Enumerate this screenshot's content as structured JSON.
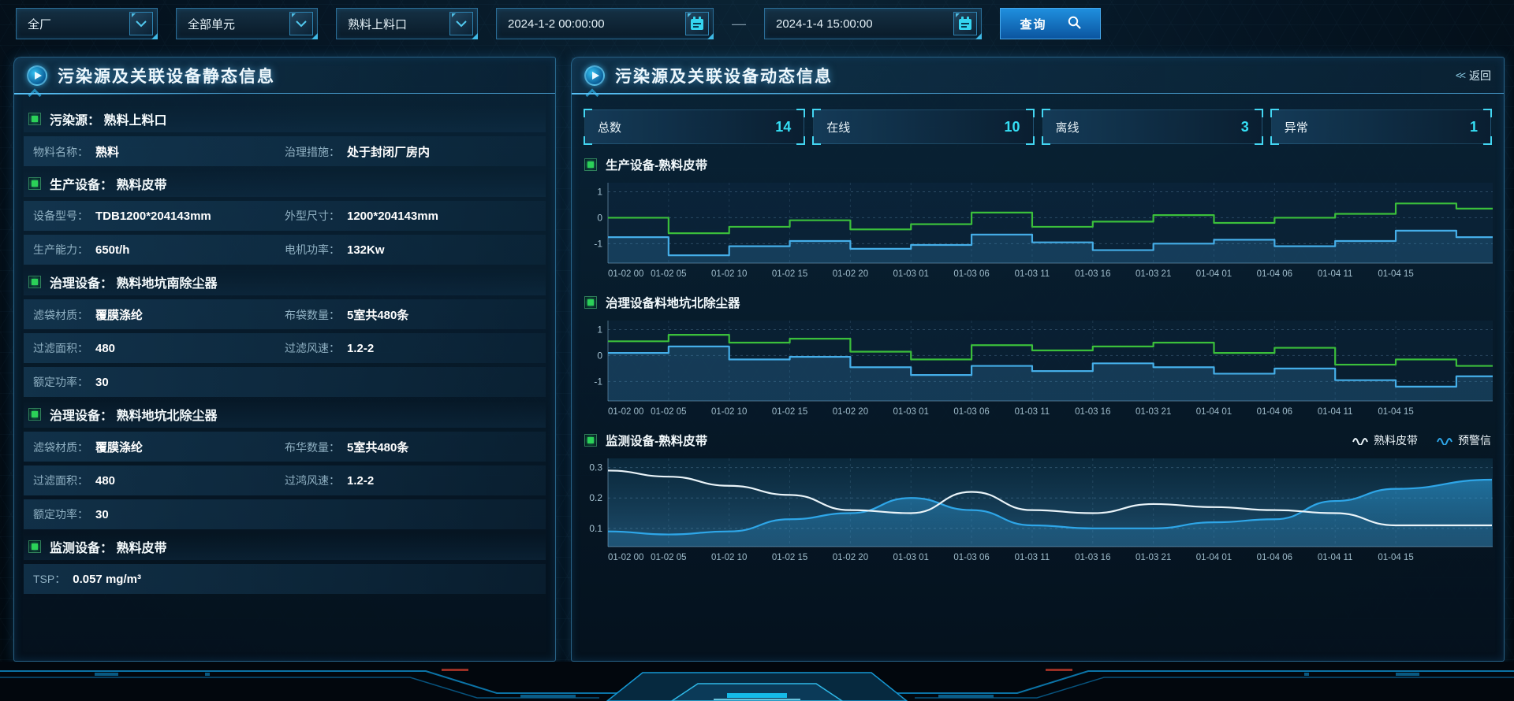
{
  "toolbar": {
    "selects": [
      {
        "value": "全厂"
      },
      {
        "value": "全部单元"
      },
      {
        "value": "熟料上料口"
      }
    ],
    "date_from": "2024-1-2 00:00:00",
    "date_to": "2024-1-4 15:00:00",
    "separator": "—",
    "query_label": "查询"
  },
  "static_panel": {
    "title": "污染源及关联设备静态信息",
    "sections": [
      {
        "title": "污染源： 熟料上料口",
        "rows": [
          [
            {
              "label": "物料名称：",
              "value": "熟料"
            },
            {
              "label": "治理措施：",
              "value": "处于封闭厂房内"
            }
          ]
        ]
      },
      {
        "title": "生产设备： 熟料皮带",
        "rows": [
          [
            {
              "label": "设备型号：",
              "value": "TDB1200*204143mm"
            },
            {
              "label": "外型尺寸：",
              "value": "1200*204143mm"
            }
          ],
          [
            {
              "label": "生产能力：",
              "value": "650t/h"
            },
            {
              "label": "电机功率：",
              "value": "132Kw"
            }
          ]
        ]
      },
      {
        "title": "治理设备： 熟料地坑南除尘器",
        "rows": [
          [
            {
              "label": "滤袋材质：",
              "value": "覆膜涤纶"
            },
            {
              "label": "布袋数量：",
              "value": "5室共480条"
            }
          ],
          [
            {
              "label": "过滤面积：",
              "value": "480"
            },
            {
              "label": "过滤风速：",
              "value": "1.2-2"
            }
          ],
          [
            {
              "label": "额定功率：",
              "value": "30"
            }
          ]
        ]
      },
      {
        "title": "治理设备： 熟料地坑北除尘器",
        "rows": [
          [
            {
              "label": "滤袋材质：",
              "value": "覆膜涤纶"
            },
            {
              "label": "布华数量：",
              "value": "5室共480条"
            }
          ],
          [
            {
              "label": "过滤面积：",
              "value": "480"
            },
            {
              "label": "过鸿风速：",
              "value": "1.2-2"
            }
          ],
          [
            {
              "label": "额定功率：",
              "value": "30"
            }
          ]
        ]
      },
      {
        "title": "监测设备： 熟料皮带",
        "rows": [
          [
            {
              "label": "TSP：",
              "value": "0.057 mg/m³"
            }
          ]
        ]
      }
    ]
  },
  "dynamic_panel": {
    "title": "污染源及关联设备动态信息",
    "back_icon": "<<",
    "back_label": "返回",
    "stats": [
      {
        "label": "总数",
        "value": 14
      },
      {
        "label": "在线",
        "value": 10
      },
      {
        "label": "离线",
        "value": 3
      },
      {
        "label": "异常",
        "value": 1
      }
    ]
  },
  "chart_data": [
    {
      "type": "step",
      "title": "生产设备-熟料皮带",
      "yticks": [
        1,
        0,
        -1
      ],
      "ylim": [
        -1.75,
        1.35
      ],
      "grid": true,
      "categories": [
        "01-02 00",
        "01-02 05",
        "01-02 10",
        "01-02 15",
        "01-02 20",
        "01-03 01",
        "01-03 06",
        "01-03 11",
        "01-03 16",
        "01-03 21",
        "01-04 01",
        "01-04 06",
        "01-04 11",
        "01-04 15"
      ],
      "series": [
        {
          "color": "#3bbf3b",
          "values": [
            0,
            -0.6,
            -0.35,
            -0.1,
            -0.45,
            -0.25,
            0.2,
            -0.35,
            -0.15,
            0.1,
            -0.2,
            0,
            0.15,
            0.55,
            0.35
          ]
        },
        {
          "color": "#45aee8",
          "area": true,
          "values": [
            -0.75,
            -1.45,
            -1.1,
            -0.9,
            -1.2,
            -1.05,
            -0.65,
            -0.95,
            -1.25,
            -1.0,
            -0.85,
            -1.1,
            -0.9,
            -0.5,
            -0.75
          ]
        }
      ]
    },
    {
      "type": "step",
      "title": "治理设备料地坑北除尘器",
      "yticks": [
        1,
        0,
        -1
      ],
      "ylim": [
        -1.75,
        1.35
      ],
      "grid": true,
      "categories": [
        "01-02 00",
        "01-02 05",
        "01-02 10",
        "01-02 15",
        "01-02 20",
        "01-03 01",
        "01-03 06",
        "01-03 11",
        "01-03 16",
        "01-03 21",
        "01-04 01",
        "01-04 06",
        "01-04 11",
        "01-04 15"
      ],
      "series": [
        {
          "color": "#3bbf3b",
          "values": [
            0.55,
            0.8,
            0.5,
            0.65,
            0.15,
            -0.15,
            0.4,
            0.2,
            0.35,
            0.5,
            0.1,
            0.3,
            -0.35,
            -0.15,
            -0.4
          ]
        },
        {
          "color": "#45aee8",
          "area": true,
          "values": [
            0.1,
            0.35,
            -0.15,
            -0.05,
            -0.45,
            -0.75,
            -0.4,
            -0.6,
            -0.3,
            -0.45,
            -0.7,
            -0.5,
            -0.95,
            -1.2,
            -0.8
          ]
        }
      ]
    },
    {
      "type": "smooth",
      "title": "监测设备-熟料皮带",
      "yticks": [
        0.3,
        0.2,
        0.1
      ],
      "ylim": [
        0.04,
        0.33
      ],
      "grid": true,
      "legend_position": "top-right",
      "categories": [
        "01-02 00",
        "01-02 05",
        "01-02 10",
        "01-02 15",
        "01-02 20",
        "01-03 01",
        "01-03 06",
        "01-03 11",
        "01-03 16",
        "01-03 21",
        "01-04 01",
        "01-04 06",
        "01-04 11",
        "01-04 15"
      ],
      "series": [
        {
          "name": "熟料皮带",
          "color": "#e9f3f8",
          "values": [
            0.29,
            0.27,
            0.24,
            0.21,
            0.16,
            0.15,
            0.22,
            0.16,
            0.15,
            0.18,
            0.17,
            0.16,
            0.15,
            0.11,
            0.11
          ]
        },
        {
          "name": "预警信",
          "color": "#2ea6e8",
          "area": true,
          "values": [
            0.09,
            0.08,
            0.09,
            0.13,
            0.15,
            0.2,
            0.16,
            0.11,
            0.1,
            0.1,
            0.12,
            0.13,
            0.19,
            0.23,
            0.26
          ]
        }
      ]
    }
  ],
  "colors": {
    "accent_cyan": "#35dff5",
    "bullet_green": "#2bd158",
    "line_green": "#3bbf3b",
    "line_blue": "#45aee8",
    "line_white": "#e9f3f8",
    "panel_border": "#2a6e9e"
  }
}
